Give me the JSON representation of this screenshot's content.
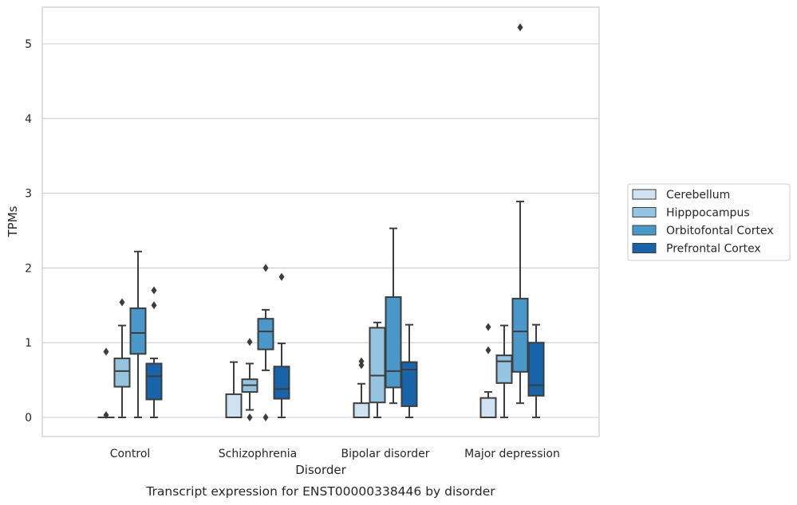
{
  "chart_data": {
    "type": "boxplot",
    "caption": "Transcript expression for ENST00000338446 by disorder",
    "xlabel": "Disorder",
    "ylabel": "TPMs",
    "ylim": [
      -0.25,
      5.5
    ],
    "yticks": [
      0,
      1,
      2,
      3,
      4,
      5
    ],
    "grid": true,
    "legend_position": "right",
    "categories": [
      "Control",
      "Schizophrenia",
      "Bipolar disorder",
      "Major depression"
    ],
    "series": [
      {
        "name": "Cerebellum",
        "color": "#d0e1f2",
        "boxes": [
          {
            "min": 0,
            "q1": 0,
            "median": 0,
            "q3": 0,
            "max": 0,
            "outliers": [
              0.03,
              0.88
            ]
          },
          {
            "min": 0,
            "q1": 0,
            "median": 0,
            "q3": 0.31,
            "max": 0.74,
            "outliers": []
          },
          {
            "min": 0,
            "q1": 0,
            "median": 0,
            "q3": 0.19,
            "max": 0.45,
            "outliers": [
              0.7,
              0.75
            ]
          },
          {
            "min": 0,
            "q1": 0,
            "median": 0,
            "q3": 0.26,
            "max": 0.34,
            "outliers": [
              0.9,
              1.21
            ]
          }
        ]
      },
      {
        "name": "Hipppocampus",
        "color": "#94c4df",
        "boxes": [
          {
            "min": 0,
            "q1": 0.41,
            "median": 0.62,
            "q3": 0.79,
            "max": 1.23,
            "outliers": [
              1.54
            ]
          },
          {
            "min": 0.1,
            "q1": 0.34,
            "median": 0.43,
            "q3": 0.51,
            "max": 0.72,
            "outliers": [
              0,
              1.01
            ]
          },
          {
            "min": 0,
            "q1": 0.2,
            "median": 0.56,
            "q3": 1.2,
            "max": 1.27,
            "outliers": []
          },
          {
            "min": 0,
            "q1": 0.46,
            "median": 0.75,
            "q3": 0.83,
            "max": 1.23,
            "outliers": []
          }
        ]
      },
      {
        "name": "Orbitofontal Cortex",
        "color": "#4a98c9",
        "boxes": [
          {
            "min": 0,
            "q1": 0.85,
            "median": 1.13,
            "q3": 1.46,
            "max": 2.22,
            "outliers": []
          },
          {
            "min": 0.63,
            "q1": 0.91,
            "median": 1.15,
            "q3": 1.32,
            "max": 1.44,
            "outliers": [
              0,
              2.0
            ]
          },
          {
            "min": 0.19,
            "q1": 0.4,
            "median": 0.62,
            "q3": 1.61,
            "max": 2.53,
            "outliers": []
          },
          {
            "min": 0.19,
            "q1": 0.61,
            "median": 1.15,
            "q3": 1.59,
            "max": 2.89,
            "outliers": [
              5.22
            ]
          }
        ]
      },
      {
        "name": "Prefrontal Cortex",
        "color": "#1764ab",
        "boxes": [
          {
            "min": 0,
            "q1": 0.24,
            "median": 0.55,
            "q3": 0.72,
            "max": 0.79,
            "outliers": [
              1.5,
              1.7
            ]
          },
          {
            "min": 0,
            "q1": 0.25,
            "median": 0.38,
            "q3": 0.68,
            "max": 0.99,
            "outliers": [
              1.88
            ]
          },
          {
            "min": 0,
            "q1": 0.15,
            "median": 0.64,
            "q3": 0.74,
            "max": 1.24,
            "outliers": []
          },
          {
            "min": 0,
            "q1": 0.29,
            "median": 0.43,
            "q3": 1.0,
            "max": 1.24,
            "outliers": []
          }
        ]
      }
    ]
  }
}
